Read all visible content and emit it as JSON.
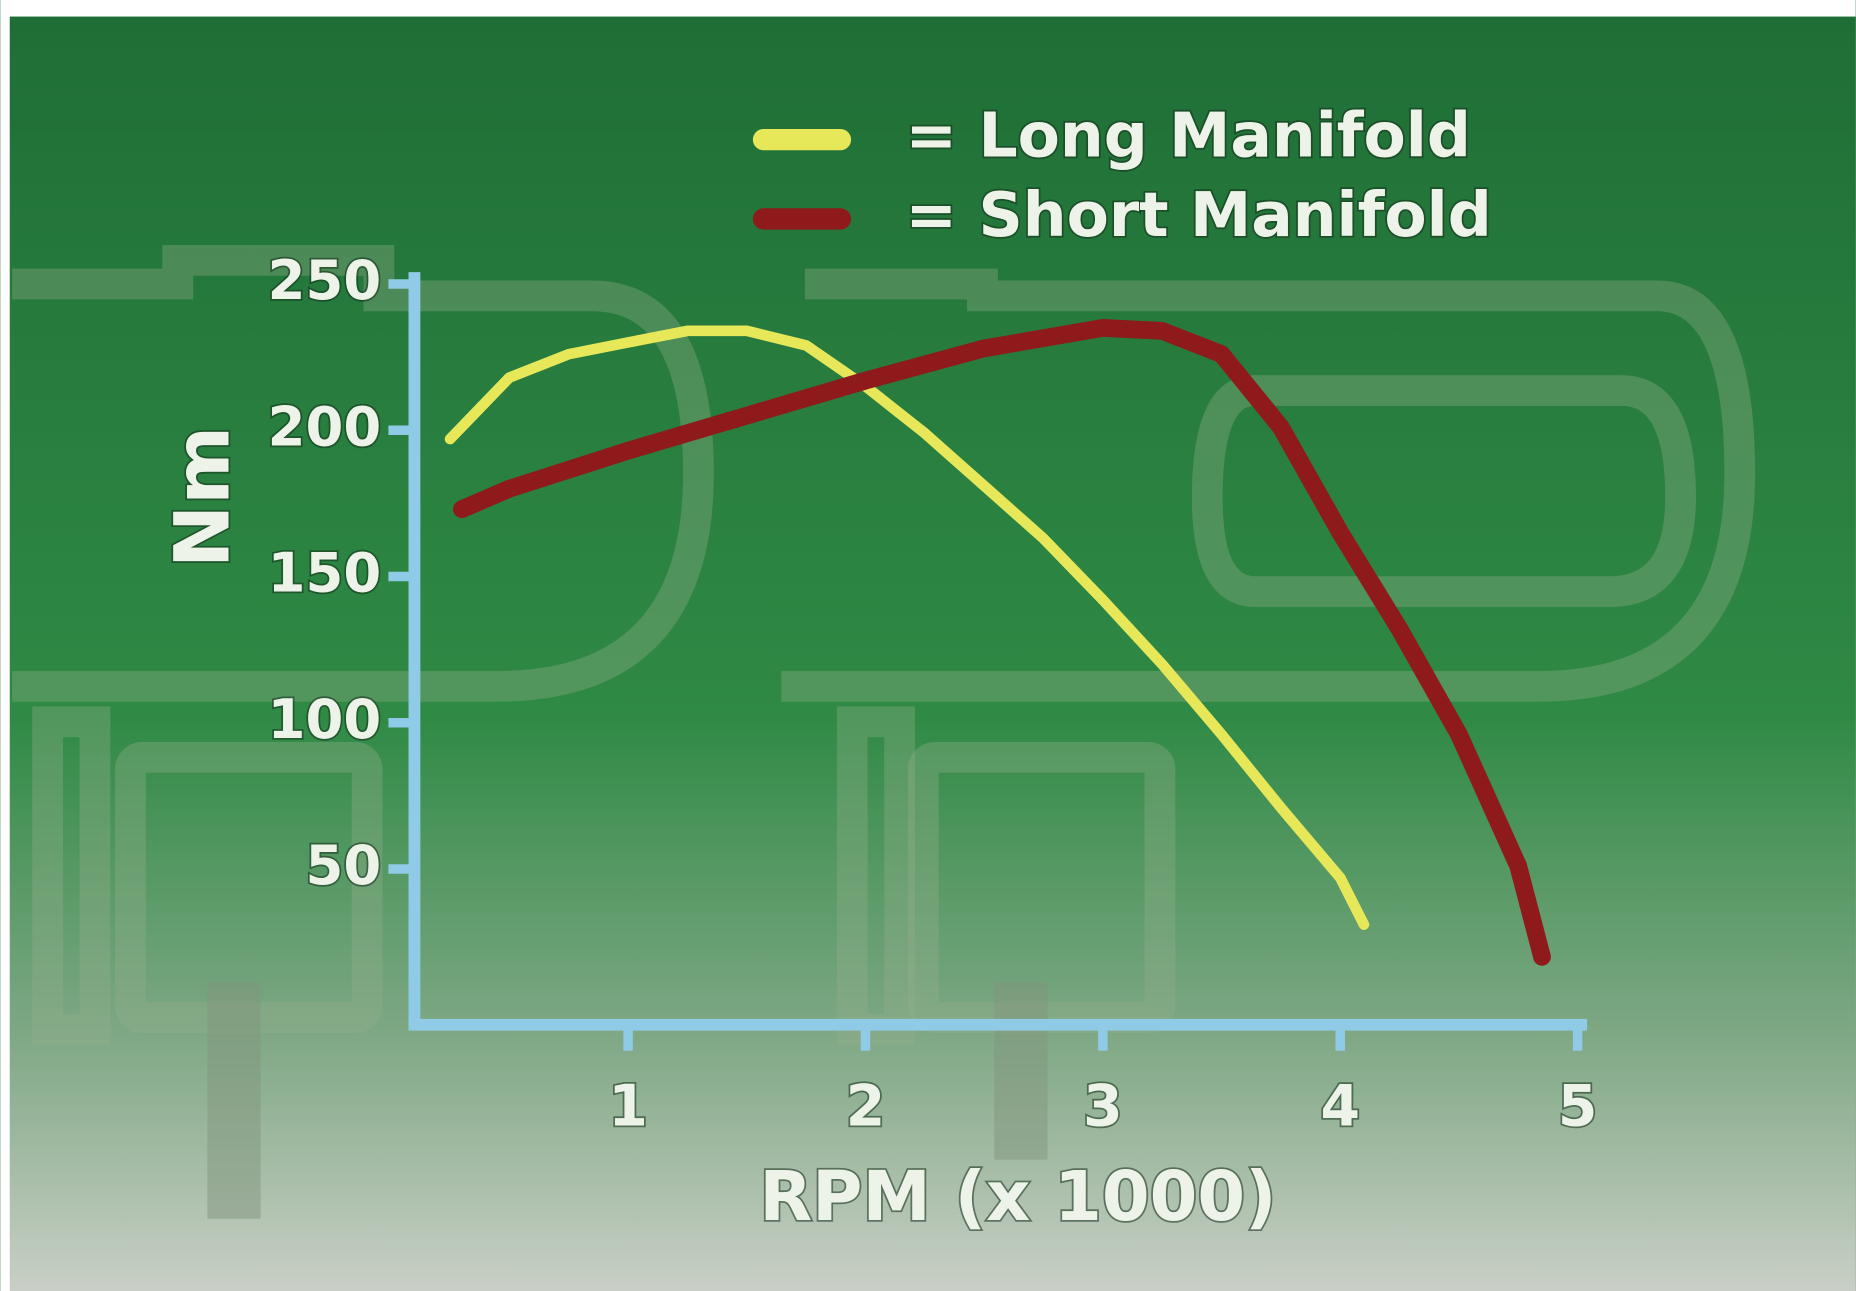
{
  "chart_data": {
    "type": "line",
    "x_label": "RPM  (x 1000)",
    "y_label": "Nm",
    "xlim": [
      0.1,
      5.04
    ],
    "ylim": [
      0,
      250
    ],
    "xticks": [
      1,
      2,
      3,
      4,
      5
    ],
    "yticks": [
      50,
      100,
      150,
      200,
      250
    ],
    "axis_color": "#8fcbe6",
    "legend": "top",
    "series": [
      {
        "name": "= Long Manifold",
        "color": "#e6e85a",
        "x": [
          0.25,
          0.5,
          0.75,
          1.0,
          1.25,
          1.5,
          1.75,
          2.0,
          2.25,
          2.5,
          2.75,
          3.0,
          3.25,
          3.5,
          3.75,
          4.0,
          4.1
        ],
        "values": [
          197,
          218,
          226,
          230,
          234,
          234,
          229,
          215,
          199,
          181,
          163,
          142,
          120,
          96,
          71,
          47,
          31
        ]
      },
      {
        "name": "= Short Manifold",
        "color": "#8e1a1c",
        "x": [
          0.3,
          0.5,
          1.0,
          1.5,
          2.0,
          2.5,
          3.0,
          3.25,
          3.5,
          3.75,
          4.0,
          4.25,
          4.5,
          4.75,
          4.85
        ],
        "values": [
          173,
          180,
          193,
          205,
          217,
          228,
          235,
          234,
          226,
          201,
          165,
          132,
          96,
          51,
          20
        ]
      }
    ]
  }
}
